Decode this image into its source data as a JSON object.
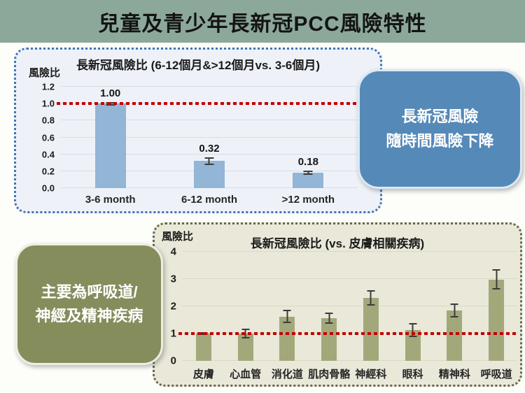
{
  "header": {
    "title": "兒童及青少年長新冠PCC風險特性",
    "bg": "#8ca89b"
  },
  "callouts": {
    "time_trend": {
      "line1": "長新冠風險",
      "line2": "隨時間風險下降",
      "bg": "#5589b8"
    },
    "main_systems": {
      "line1": "主要為呼吸道/",
      "line2": "神經及精神疾病",
      "bg": "#868d5d"
    }
  },
  "chart_data": [
    {
      "type": "bar",
      "title": "長新冠風險比 (6-12個月&>12個月vs. 3-6個月)",
      "ylabel": "風險比",
      "categories": [
        "3-6 month",
        "6-12 month",
        ">12 month"
      ],
      "values": [
        1.0,
        0.32,
        0.18
      ],
      "errors": [
        0.02,
        0.045,
        0.025
      ],
      "value_labels": [
        "1.00",
        "0.32",
        "0.18"
      ],
      "ylim": [
        0,
        1.2
      ],
      "ytick_values": [
        0,
        0.2,
        0.4,
        0.6,
        0.8,
        1.0,
        1.2
      ],
      "ytick_labels": [
        "0.0",
        "0.2",
        "0.4",
        "0.6",
        "0.8",
        "1.0",
        "1.2"
      ],
      "ref_line": 1.0,
      "ref_color": "#c00000",
      "bar_color": "#93b5d6",
      "grid_color": "#d6dce6",
      "grid": true,
      "legend": "none"
    },
    {
      "type": "bar",
      "title": "長新冠風險比 (vs. 皮膚相關疾病)",
      "ylabel": "風險比",
      "categories": [
        "皮膚",
        "心血管",
        "消化道",
        "肌肉骨骼",
        "神經科",
        "眼科",
        "精神科",
        "呼吸道"
      ],
      "values": [
        1.0,
        1.0,
        1.62,
        1.57,
        2.3,
        1.12,
        1.85,
        2.98
      ],
      "errors": [
        0.04,
        0.17,
        0.24,
        0.2,
        0.28,
        0.26,
        0.25,
        0.37
      ],
      "value_labels": null,
      "ylim": [
        0,
        4
      ],
      "ytick_values": [
        0,
        1,
        2,
        3,
        4
      ],
      "ytick_labels": [
        "0",
        "1",
        "2",
        "3",
        "4"
      ],
      "ref_line": 1.0,
      "ref_color": "#c00000",
      "bar_color": "#a3a87a",
      "grid_color": "#dbdac5",
      "grid": true,
      "legend": "none"
    }
  ]
}
